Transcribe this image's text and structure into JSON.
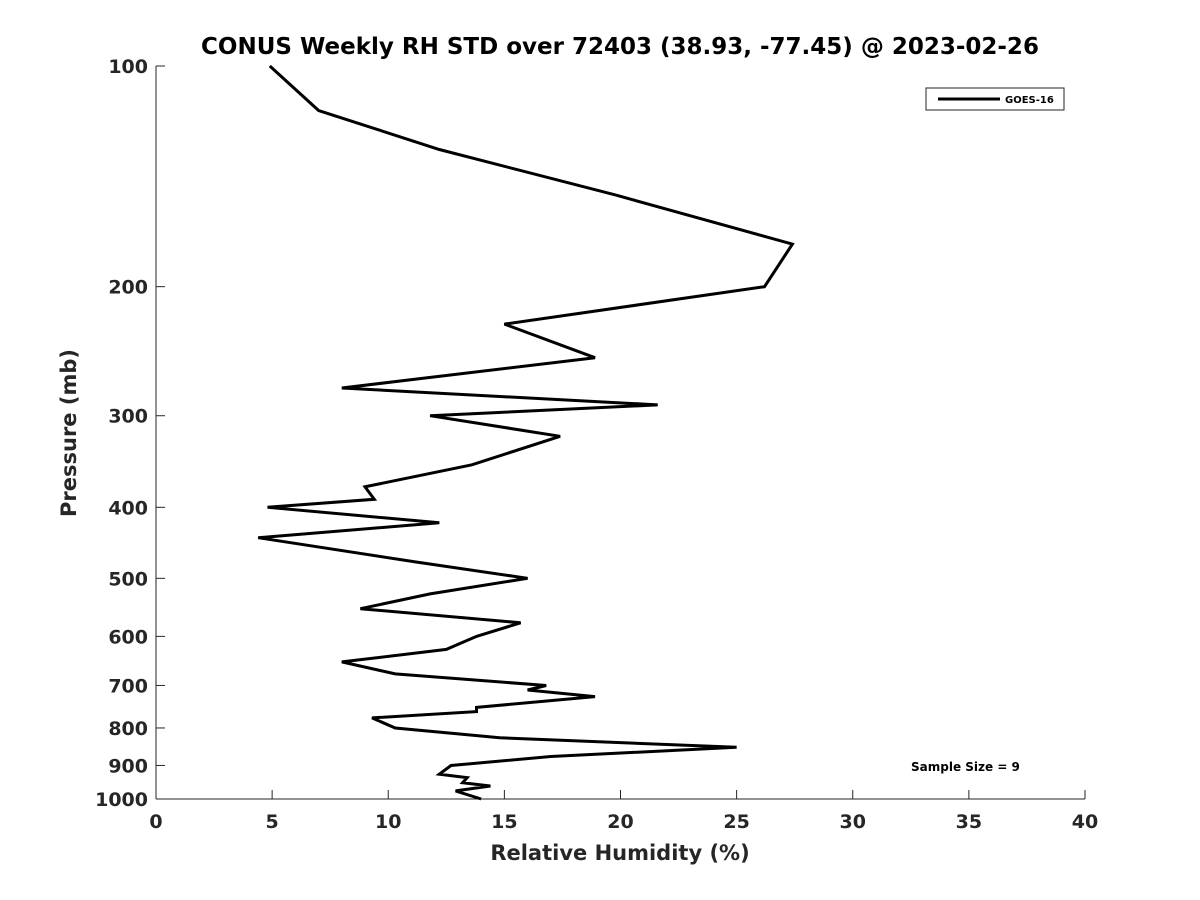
{
  "chart_data": {
    "type": "line",
    "title": "CONUS Weekly RH STD over 72403 (38.93, -77.45) @ 2023-02-26",
    "xlabel": "Relative Humidity (%)",
    "ylabel": "Pressure (mb)",
    "xlim": [
      0,
      40
    ],
    "ylim": [
      100,
      1000
    ],
    "y_scale": "log",
    "y_inverted": true,
    "x_ticks": [
      "0",
      "5",
      "10",
      "15",
      "20",
      "25",
      "30",
      "35",
      "40"
    ],
    "y_ticks": [
      "100",
      "200",
      "300",
      "400",
      "500",
      "600",
      "700",
      "800",
      "900",
      "1000"
    ],
    "grid": false,
    "legend_position": "top-right",
    "annotation": "Sample Size = 9",
    "series": [
      {
        "name": "GOES-16",
        "color": "#000000",
        "points": [
          [
            4.9,
            100
          ],
          [
            7.0,
            115
          ],
          [
            12.2,
            130
          ],
          [
            19.8,
            150
          ],
          [
            27.4,
            175
          ],
          [
            26.2,
            200
          ],
          [
            15.0,
            225
          ],
          [
            18.9,
            250
          ],
          [
            8.0,
            275
          ],
          [
            21.6,
            290
          ],
          [
            11.8,
            300
          ],
          [
            17.4,
            320
          ],
          [
            13.6,
            350
          ],
          [
            9.0,
            375
          ],
          [
            9.4,
            390
          ],
          [
            4.8,
            400
          ],
          [
            12.2,
            420
          ],
          [
            4.4,
            440
          ],
          [
            11.2,
            475
          ],
          [
            16.0,
            500
          ],
          [
            11.8,
            525
          ],
          [
            8.8,
            550
          ],
          [
            15.7,
            575
          ],
          [
            13.8,
            600
          ],
          [
            12.5,
            625
          ],
          [
            8.0,
            650
          ],
          [
            10.3,
            675
          ],
          [
            16.8,
            700
          ],
          [
            16.0,
            710
          ],
          [
            18.9,
            725
          ],
          [
            13.8,
            750
          ],
          [
            13.8,
            760
          ],
          [
            9.3,
            775
          ],
          [
            10.3,
            800
          ],
          [
            14.8,
            825
          ],
          [
            25.0,
            850
          ],
          [
            17.0,
            875
          ],
          [
            12.7,
            900
          ],
          [
            12.2,
            925
          ],
          [
            13.4,
            935
          ],
          [
            13.2,
            950
          ],
          [
            14.4,
            960
          ],
          [
            12.9,
            975
          ],
          [
            14.0,
            1000
          ]
        ]
      }
    ]
  }
}
